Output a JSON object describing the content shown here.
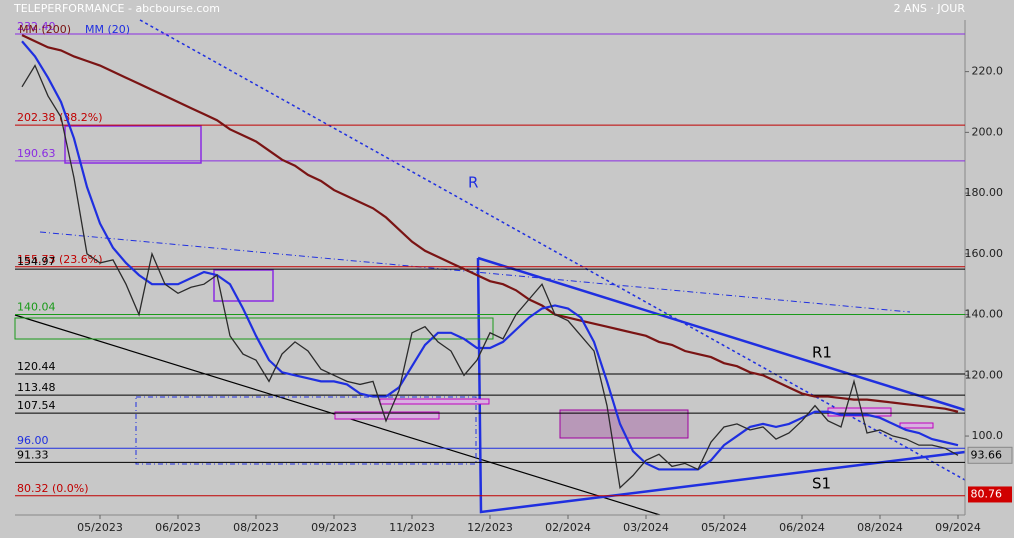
{
  "chart_data": {
    "type": "line",
    "title": "TELEPERFORMANCE - abcbourse.com",
    "subtitle": "2 ANS · JOUR",
    "categories": [
      null,
      null,
      null,
      null,
      null,
      null,
      "05/2023",
      null,
      null,
      null,
      null,
      null,
      "06/2023",
      null,
      null,
      null,
      null,
      null,
      "08/2023",
      null,
      null,
      null,
      null,
      null,
      "09/2023",
      null,
      null,
      null,
      null,
      null,
      "11/2023",
      null,
      null,
      null,
      null,
      null,
      "12/2023",
      null,
      null,
      null,
      null,
      null,
      "02/2024",
      null,
      null,
      null,
      null,
      null,
      "03/2024",
      null,
      null,
      null,
      null,
      null,
      "05/2024",
      null,
      null,
      null,
      null,
      null,
      "06/2024",
      null,
      null,
      null,
      null,
      null,
      "08/2024",
      null,
      null,
      null,
      null,
      null,
      "09/2024"
    ],
    "values": [
      215,
      222,
      212,
      205,
      185,
      160,
      157,
      158,
      150,
      140,
      160,
      150,
      147,
      149,
      150,
      153,
      133,
      127,
      125,
      118,
      127,
      131,
      128,
      122,
      120,
      118,
      117,
      118,
      105,
      115,
      134,
      136,
      131,
      128,
      120,
      125,
      134,
      132,
      140,
      145,
      150,
      140,
      138,
      133,
      128,
      110,
      83,
      87,
      92,
      94,
      90,
      91,
      89,
      98,
      103,
      104,
      102,
      103,
      99,
      101,
      105,
      110,
      105,
      103,
      118,
      101,
      102,
      100,
      99,
      97,
      97,
      96,
      93.66
    ],
    "color": "#2b2b2b",
    "series": [
      {
        "name": "MM (200)",
        "color": "#7a1414",
        "values": [
          232,
          230,
          228,
          227,
          225,
          223.5,
          222,
          220,
          218,
          216,
          214,
          212,
          210,
          208,
          206,
          204,
          201,
          199,
          197,
          194,
          191,
          189,
          186,
          184,
          181,
          179,
          177,
          175,
          172,
          168,
          164,
          161,
          159,
          157,
          155,
          153,
          151,
          150,
          148,
          145,
          143,
          140,
          139,
          138,
          137,
          136,
          135,
          134,
          133,
          131,
          130,
          128,
          127,
          126,
          124,
          123,
          121,
          120,
          118,
          116,
          114,
          113,
          113,
          112.5,
          112,
          112,
          111.5,
          111,
          110.5,
          110,
          109.5,
          109,
          108
        ]
      },
      {
        "name": "MM (20)",
        "color": "#1f2fe0",
        "values": [
          230,
          225,
          218,
          210,
          198,
          182,
          170,
          162,
          157,
          153,
          150,
          150,
          150,
          152,
          154,
          153,
          150,
          142,
          133,
          125,
          121,
          120,
          119,
          118,
          118,
          117,
          114,
          113,
          113,
          116,
          123,
          130,
          134,
          134,
          132,
          129,
          129,
          131,
          135,
          139,
          142,
          143,
          142,
          139,
          131,
          118,
          104,
          95,
          91,
          89,
          89,
          89,
          89,
          92,
          97,
          100,
          103,
          104,
          103,
          104,
          106,
          108,
          108,
          107,
          107,
          107,
          106,
          104,
          102,
          101,
          99,
          98,
          97
        ]
      }
    ],
    "ylim": [
      74,
      237
    ],
    "yticks": [
      {
        "value": 100,
        "label": "100.0"
      },
      {
        "value": 120,
        "label": "120.00"
      },
      {
        "value": 140,
        "label": "140.00"
      },
      {
        "value": 160,
        "label": "160.00"
      },
      {
        "value": 180,
        "label": "180.00"
      },
      {
        "value": 200,
        "label": "200.0"
      },
      {
        "value": 220,
        "label": "220.0"
      }
    ],
    "levels": [
      {
        "value": 232.4,
        "label": "232.40",
        "color": "#8a2be2"
      },
      {
        "value": 202.38,
        "label": "202.38  (38.2%)",
        "color": "#c00000"
      },
      {
        "value": 190.63,
        "label": "190.63",
        "color": "#8a2be2"
      },
      {
        "value": 155.73,
        "label": "155.73  (23.6%)",
        "color": "#c00000"
      },
      {
        "value": 154.97,
        "label": "154.97",
        "color": "#000000"
      },
      {
        "value": 140.04,
        "label": "140.04",
        "color": "#1a9a1a"
      },
      {
        "value": 120.44,
        "label": "120.44",
        "color": "#000000"
      },
      {
        "value": 113.48,
        "label": "113.48",
        "color": "#000000"
      },
      {
        "value": 107.54,
        "label": "107.54",
        "color": "#000000"
      },
      {
        "value": 96,
        "label": "96.00",
        "color": "#1f2fe0"
      },
      {
        "value": 91.33,
        "label": "91.33",
        "color": "#000000"
      },
      {
        "value": 80.32,
        "label": "80.32  (0.0%)",
        "color": "#c00000"
      }
    ],
    "last_price": 93.66,
    "low_marker": 80.76,
    "annotations": [
      "R",
      "R1",
      "S1"
    ]
  }
}
